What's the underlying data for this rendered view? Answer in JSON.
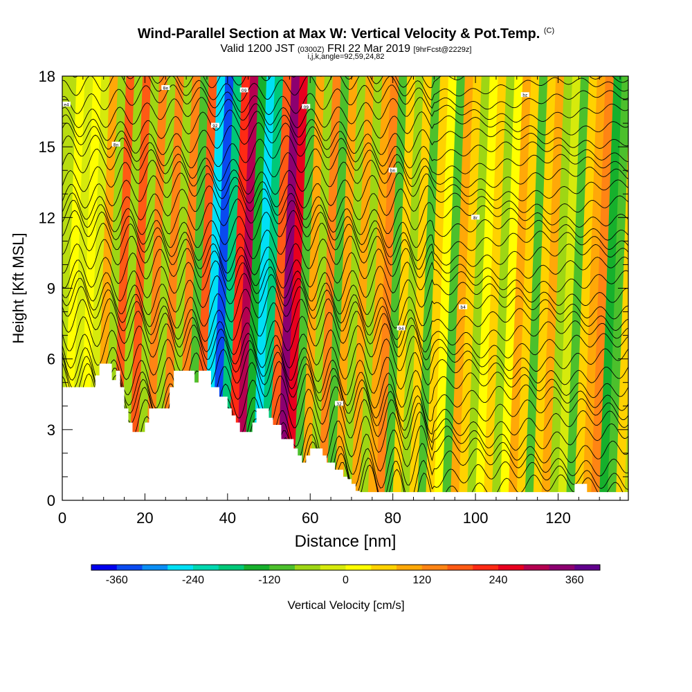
{
  "header": {
    "title": "Wind-Parallel Section at Max W: Vertical Velocity & Pot.Temp.",
    "title_mark": "(C)",
    "valid_prefix": "Valid 1200 JST",
    "valid_utc": "(0300Z)",
    "valid_date": "FRI 22 Mar 2019",
    "forecast": "[9hrFcst@2229z]",
    "subtitle2": "i,j,k,angle=92,59,24,82"
  },
  "chart_data": {
    "type": "heatmap",
    "xlabel": "Distance [nm]",
    "ylabel": "Height [Kft MSL]",
    "xlim": [
      0,
      137
    ],
    "ylim": [
      0,
      18
    ],
    "x_ticks": [
      0,
      20,
      40,
      60,
      80,
      100,
      120
    ],
    "y_ticks": [
      0,
      3,
      6,
      9,
      12,
      15,
      18
    ],
    "grid": false,
    "colorbar": {
      "label": "Vertical Velocity [cm/s]",
      "ticks": [
        -360,
        -240,
        -120,
        0,
        120,
        240,
        360
      ],
      "range": [
        -400,
        400
      ],
      "colors": [
        "#0000ee",
        "#0a4af0",
        "#0a8ef5",
        "#00e0f5",
        "#00d8b0",
        "#00c878",
        "#16b02c",
        "#4cc02c",
        "#9ed614",
        "#d6ea0c",
        "#ffff00",
        "#ffd200",
        "#ffa808",
        "#ff8414",
        "#ff5a14",
        "#ff2a14",
        "#e8001e",
        "#b40050",
        "#8c0070",
        "#60008c"
      ]
    },
    "columns": [
      {
        "x": 1,
        "w": 20
      },
      {
        "x": 3,
        "w": -40
      },
      {
        "x": 5,
        "w": 30
      },
      {
        "x": 7,
        "w": -30
      },
      {
        "x": 9,
        "w": 80
      },
      {
        "x": 11,
        "w": -60
      },
      {
        "x": 13,
        "w": 180
      },
      {
        "x": 15,
        "w": -80
      },
      {
        "x": 17,
        "w": 160
      },
      {
        "x": 19,
        "w": -70
      },
      {
        "x": 21,
        "w": 150
      },
      {
        "x": 23,
        "w": -60
      },
      {
        "x": 25,
        "w": 140
      },
      {
        "x": 27,
        "w": -80
      },
      {
        "x": 29,
        "w": 130
      },
      {
        "x": 31,
        "w": -90
      },
      {
        "x": 33,
        "w": 160
      },
      {
        "x": 35,
        "w": -250
      },
      {
        "x": 37,
        "w": -340
      },
      {
        "x": 39,
        "w": -200
      },
      {
        "x": 41,
        "w": 200
      },
      {
        "x": 43,
        "w": 310
      },
      {
        "x": 45,
        "w": -160
      },
      {
        "x": 47,
        "w": -260
      },
      {
        "x": 49,
        "w": -180
      },
      {
        "x": 51,
        "w": 180
      },
      {
        "x": 53,
        "w": 330
      },
      {
        "x": 55,
        "w": 240
      },
      {
        "x": 57,
        "w": -100
      },
      {
        "x": 59,
        "w": 110
      },
      {
        "x": 61,
        "w": -60
      },
      {
        "x": 63,
        "w": 130
      },
      {
        "x": 65,
        "w": -90
      },
      {
        "x": 67,
        "w": 110
      },
      {
        "x": 69,
        "w": -70
      },
      {
        "x": 71,
        "w": 90
      },
      {
        "x": 73,
        "w": -80
      },
      {
        "x": 75,
        "w": 110
      },
      {
        "x": 77,
        "w": 140
      },
      {
        "x": 79,
        "w": -100
      },
      {
        "x": 81,
        "w": 60
      },
      {
        "x": 83,
        "w": -70
      },
      {
        "x": 85,
        "w": 70
      },
      {
        "x": 87,
        "w": -90
      },
      {
        "x": 89,
        "w": 60
      },
      {
        "x": 91,
        "w": 20
      },
      {
        "x": 93,
        "w": -100
      },
      {
        "x": 95,
        "w": 80
      },
      {
        "x": 97,
        "w": 40
      },
      {
        "x": 99,
        "w": -80
      },
      {
        "x": 101,
        "w": 30
      },
      {
        "x": 103,
        "w": 60
      },
      {
        "x": 105,
        "w": -60
      },
      {
        "x": 107,
        "w": 30
      },
      {
        "x": 109,
        "w": 90
      },
      {
        "x": 111,
        "w": 70
      },
      {
        "x": 113,
        "w": -90
      },
      {
        "x": 115,
        "w": 40
      },
      {
        "x": 117,
        "w": 90
      },
      {
        "x": 119,
        "w": -50
      },
      {
        "x": 121,
        "w": -20
      },
      {
        "x": 123,
        "w": -90
      },
      {
        "x": 125,
        "w": 60
      },
      {
        "x": 127,
        "w": 90
      },
      {
        "x": 129,
        "w": 120
      },
      {
        "x": 131,
        "w": -140
      },
      {
        "x": 133,
        "w": -100
      },
      {
        "x": 135,
        "w": 60
      }
    ],
    "terrain": [
      [
        0,
        4.8
      ],
      [
        7,
        4.8
      ],
      [
        8,
        5.3
      ],
      [
        9,
        5.8
      ],
      [
        11,
        5.8
      ],
      [
        12,
        5.1
      ],
      [
        13,
        5.5
      ],
      [
        14,
        4.8
      ],
      [
        15,
        3.9
      ],
      [
        16,
        3.3
      ],
      [
        17,
        2.9
      ],
      [
        19,
        2.9
      ],
      [
        20,
        3.3
      ],
      [
        21,
        3.9
      ],
      [
        25,
        3.9
      ],
      [
        26,
        4.8
      ],
      [
        27,
        5.5
      ],
      [
        30,
        5.5
      ],
      [
        32,
        5.0
      ],
      [
        33,
        5.5
      ],
      [
        35,
        5.5
      ],
      [
        36,
        4.8
      ],
      [
        38,
        4.4
      ],
      [
        40,
        3.9
      ],
      [
        41,
        3.6
      ],
      [
        42,
        3.3
      ],
      [
        43,
        2.9
      ],
      [
        45,
        2.9
      ],
      [
        46,
        3.3
      ],
      [
        47,
        3.9
      ],
      [
        49,
        3.9
      ],
      [
        50,
        3.5
      ],
      [
        51,
        3.2
      ],
      [
        53,
        2.6
      ],
      [
        55,
        2.6
      ],
      [
        56,
        2.2
      ],
      [
        57,
        1.9
      ],
      [
        58,
        1.6
      ],
      [
        59,
        1.9
      ],
      [
        60,
        2.2
      ],
      [
        62,
        2.2
      ],
      [
        63,
        1.9
      ],
      [
        64,
        1.6
      ],
      [
        65,
        1.6
      ],
      [
        66,
        1.3
      ],
      [
        67,
        1.3
      ],
      [
        68,
        1.0
      ],
      [
        69,
        0.9
      ],
      [
        70,
        0.7
      ],
      [
        71,
        0.4
      ],
      [
        72,
        0.35
      ],
      [
        123,
        0.35
      ],
      [
        124,
        0.7
      ],
      [
        126,
        0.7
      ],
      [
        127,
        0.35
      ],
      [
        137,
        0.35
      ]
    ],
    "contour_labels": [
      "e4",
      "8n",
      "8e",
      "92",
      "09",
      "09",
      "bn",
      "8r",
      "bz",
      "b4",
      "94",
      "32"
    ]
  }
}
